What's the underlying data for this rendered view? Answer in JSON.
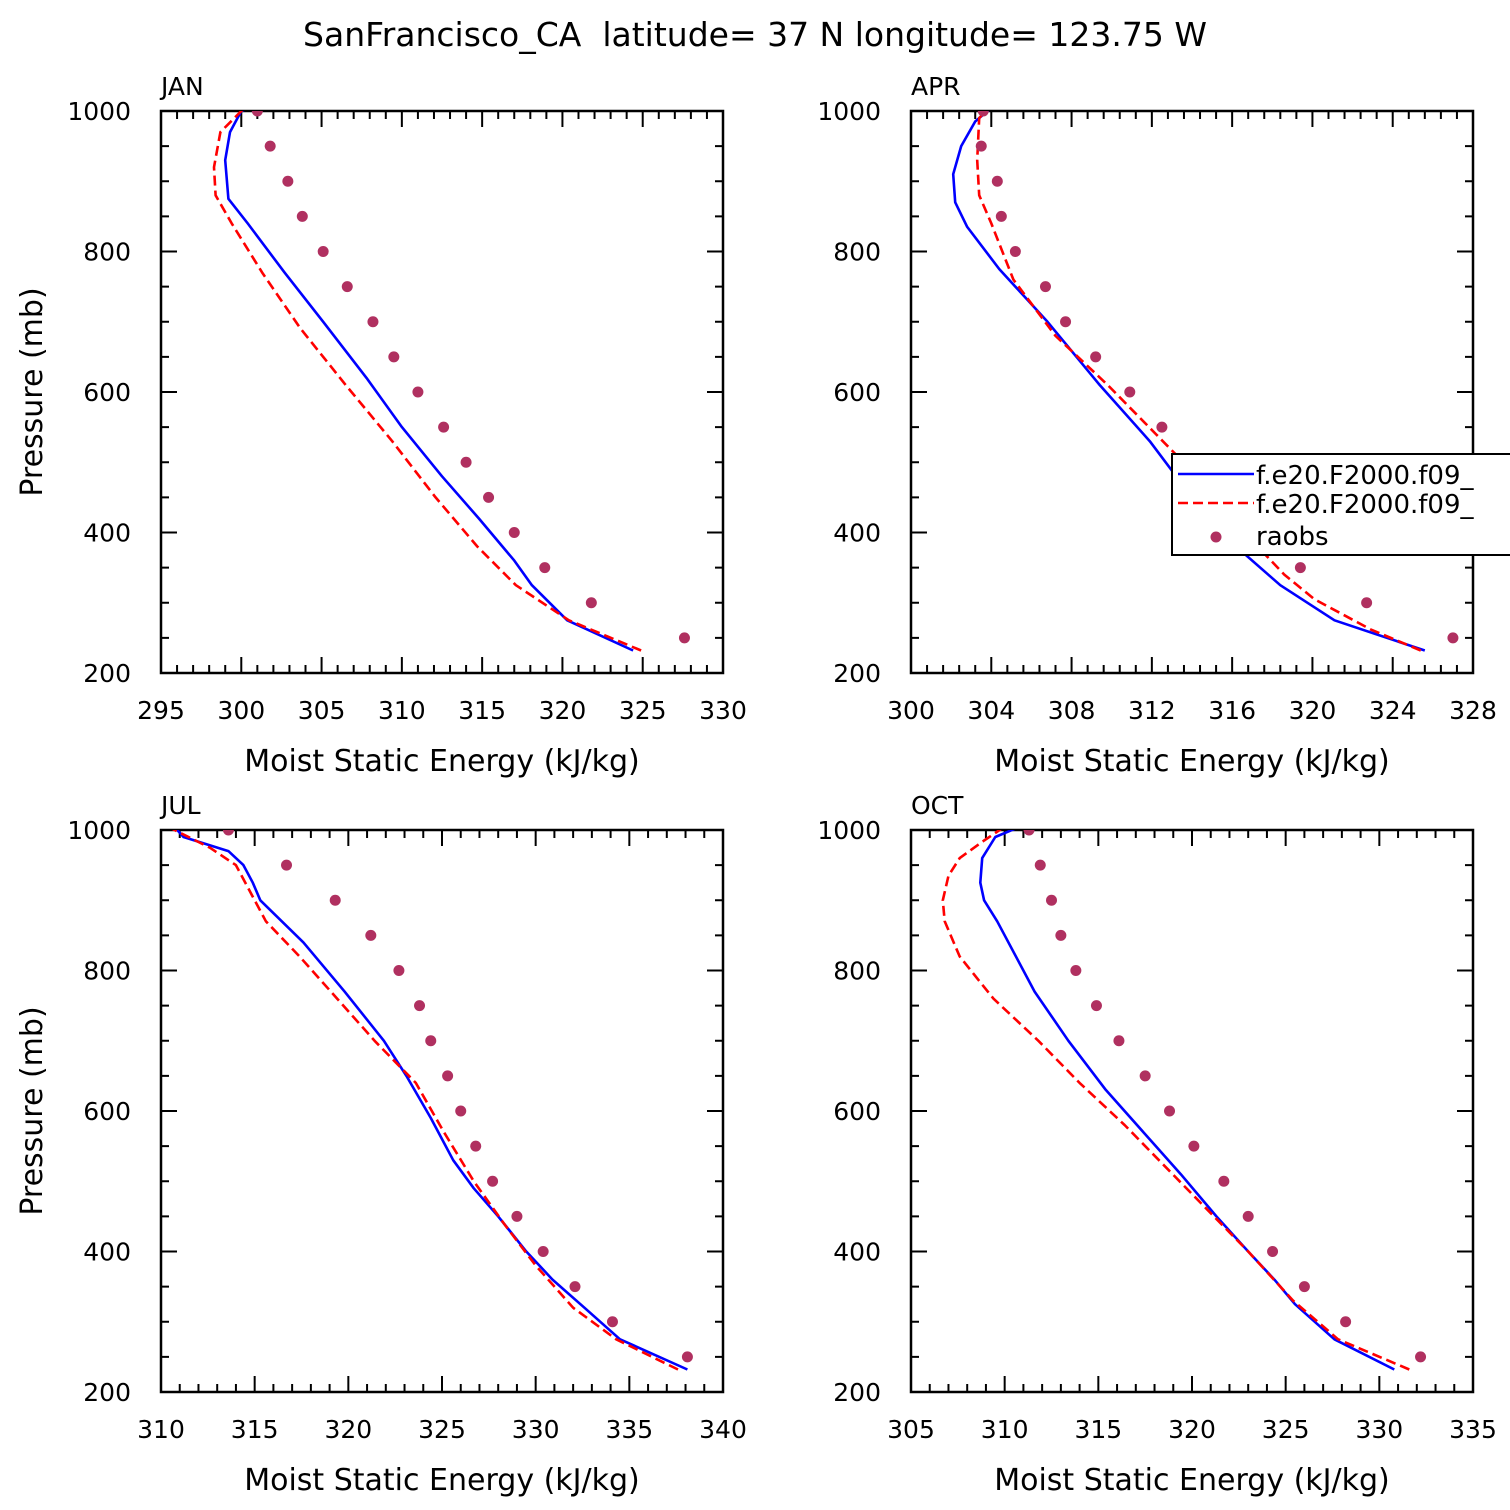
{
  "figure": {
    "title": "SanFrancisco_CA  latitude= 37 N longitude= 123.75 W"
  },
  "legend": {
    "entries": [
      {
        "label": "f.e20.F2000.f09_",
        "style": "solid",
        "color": "#0000ff"
      },
      {
        "label": "f.e20.F2000.f09_",
        "style": "dashed",
        "color": "#ff0000"
      },
      {
        "label": "raobs",
        "style": "dot",
        "color": "#b03060"
      }
    ]
  },
  "colors": {
    "model_solid": "#0000ff",
    "model_dashed": "#ff0000",
    "raobs": "#b03060"
  },
  "chart_data": [
    {
      "type": "line",
      "panel_label": "JAN",
      "xlabel": "Moist Static Energy (kJ/kg)",
      "ylabel": "Pressure (mb)",
      "xlim": [
        295,
        330
      ],
      "ylim": [
        1000,
        200
      ],
      "xticks": [
        295,
        300,
        305,
        310,
        315,
        320,
        325,
        330
      ],
      "yticks": [
        200,
        400,
        600,
        800,
        1000
      ],
      "series": [
        {
          "style": "solid",
          "color": "#0000ff",
          "x": [
            324.4,
            320.3,
            318.1,
            317.0,
            314.8,
            312.5,
            310.0,
            307.8,
            305.1,
            302.7,
            300.4,
            299.2,
            299.0,
            299.3,
            300.0,
            301.1
          ],
          "y": [
            232,
            275,
            325,
            360,
            420,
            480,
            550,
            620,
            700,
            770,
            840,
            875,
            930,
            970,
            1000,
            1010
          ]
        },
        {
          "style": "dashed",
          "color": "#ff0000",
          "x": [
            324.9,
            320.4,
            317.1,
            314.7,
            312.1,
            309.4,
            306.5,
            303.7,
            301.3,
            299.4,
            298.4,
            298.3,
            298.7,
            300.0,
            300.9
          ],
          "y": [
            232,
            275,
            325,
            380,
            450,
            530,
            610,
            690,
            770,
            840,
            880,
            920,
            970,
            1000,
            1007
          ]
        }
      ],
      "raobs": {
        "x": [
          327.6,
          321.8,
          318.9,
          317.0,
          315.4,
          314.0,
          312.6,
          311.0,
          309.5,
          308.2,
          306.6,
          305.1,
          303.8,
          302.9,
          301.8,
          301.0
        ],
        "y": [
          250,
          300,
          350,
          400,
          450,
          500,
          550,
          600,
          650,
          700,
          750,
          800,
          850,
          900,
          950,
          1000
        ]
      }
    },
    {
      "type": "line",
      "panel_label": "APR",
      "xlabel": "Moist Static Energy (kJ/kg)",
      "ylabel": "",
      "xlim": [
        300,
        328
      ],
      "ylim": [
        1000,
        200
      ],
      "xticks": [
        300,
        304,
        308,
        312,
        316,
        320,
        324,
        328
      ],
      "yticks": [
        200,
        400,
        600,
        800,
        1000
      ],
      "series": [
        {
          "style": "solid",
          "color": "#0000ff",
          "x": [
            325.6,
            321.1,
            318.4,
            316.0,
            314.0,
            311.9,
            309.4,
            306.8,
            304.4,
            302.8,
            302.2,
            302.1,
            302.5,
            303.2,
            304.1
          ],
          "y": [
            232,
            275,
            325,
            385,
            450,
            530,
            610,
            700,
            775,
            835,
            870,
            910,
            950,
            985,
            1007
          ]
        },
        {
          "style": "dashed",
          "color": "#ff0000",
          "x": [
            325.4,
            322.9,
            320.1,
            318.6,
            316.6,
            314.6,
            312.2,
            309.8,
            307.2,
            305.1,
            304.0,
            303.4,
            303.3,
            303.4,
            304.0
          ],
          "y": [
            232,
            262,
            305,
            340,
            400,
            470,
            540,
            610,
            680,
            760,
            840,
            880,
            930,
            990,
            1007
          ]
        }
      ],
      "raobs": {
        "x": [
          327.0,
          322.7,
          319.4,
          317.2,
          315.6,
          314.3,
          312.5,
          310.9,
          309.2,
          307.7,
          306.7,
          305.2,
          304.5,
          304.3,
          303.5,
          303.6
        ],
        "y": [
          250,
          300,
          350,
          400,
          450,
          500,
          550,
          600,
          650,
          700,
          750,
          800,
          850,
          900,
          950,
          1000
        ]
      }
    },
    {
      "type": "line",
      "panel_label": "JUL",
      "xlabel": "Moist Static Energy (kJ/kg)",
      "ylabel": "Pressure (mb)",
      "xlim": [
        310,
        340
      ],
      "ylim": [
        1000,
        200
      ],
      "xticks": [
        310,
        315,
        320,
        325,
        330,
        335,
        340
      ],
      "yticks": [
        200,
        400,
        600,
        800,
        1000
      ],
      "series": [
        {
          "style": "solid",
          "color": "#0000ff",
          "x": [
            338.1,
            334.5,
            332.6,
            330.9,
            329.5,
            328.0,
            326.7,
            325.6,
            324.4,
            323.1,
            321.9,
            319.8,
            317.6,
            315.3,
            314.9,
            314.4,
            313.6,
            311.2,
            310.7
          ],
          "y": [
            232,
            275,
            320,
            360,
            400,
            450,
            490,
            530,
            590,
            650,
            700,
            770,
            840,
            900,
            925,
            950,
            970,
            990,
            1005
          ]
        },
        {
          "style": "dashed",
          "color": "#ff0000",
          "x": [
            337.6,
            334.3,
            332.0,
            330.0,
            328.3,
            326.7,
            325.1,
            323.6,
            321.4,
            319.4,
            317.4,
            315.6,
            315.0,
            314.0,
            312.6,
            310.5
          ],
          "y": [
            232,
            275,
            320,
            380,
            440,
            500,
            570,
            640,
            700,
            760,
            820,
            870,
            900,
            950,
            975,
            1003
          ]
        }
      ],
      "raobs": {
        "x": [
          338.1,
          334.1,
          332.1,
          330.4,
          329.0,
          327.7,
          326.8,
          326.0,
          325.3,
          324.4,
          323.8,
          322.7,
          321.2,
          319.3,
          316.7,
          313.6
        ],
        "y": [
          250,
          300,
          350,
          400,
          450,
          500,
          550,
          600,
          650,
          700,
          750,
          800,
          850,
          900,
          950,
          1000
        ]
      }
    },
    {
      "type": "line",
      "panel_label": "OCT",
      "xlabel": "Moist Static Energy (kJ/kg)",
      "ylabel": "",
      "xlim": [
        305,
        335
      ],
      "ylim": [
        1000,
        200
      ],
      "xticks": [
        305,
        310,
        315,
        320,
        325,
        330,
        335
      ],
      "yticks": [
        200,
        400,
        600,
        800,
        1000
      ],
      "series": [
        {
          "style": "solid",
          "color": "#0000ff",
          "x": [
            330.8,
            327.6,
            325.5,
            324.4,
            323.0,
            321.3,
            319.4,
            317.4,
            315.4,
            313.4,
            311.6,
            309.6,
            308.9,
            308.7,
            308.8,
            309.5,
            311.1
          ],
          "y": [
            232,
            275,
            325,
            360,
            400,
            450,
            510,
            570,
            630,
            700,
            770,
            870,
            900,
            925,
            960,
            990,
            1008
          ]
        },
        {
          "style": "dashed",
          "color": "#ff0000",
          "x": [
            331.6,
            327.8,
            325.4,
            323.0,
            320.8,
            318.6,
            316.4,
            314.0,
            311.8,
            309.4,
            307.6,
            306.8,
            306.7,
            307.0,
            307.6,
            308.9,
            309.9
          ],
          "y": [
            232,
            275,
            330,
            400,
            460,
            520,
            580,
            640,
            700,
            760,
            820,
            870,
            900,
            935,
            960,
            985,
            1003
          ]
        }
      ],
      "raobs": {
        "x": [
          332.2,
          328.2,
          326.0,
          324.3,
          323.0,
          321.7,
          320.1,
          318.8,
          317.5,
          316.1,
          314.9,
          313.8,
          313.0,
          312.5,
          311.9,
          311.3
        ],
        "y": [
          250,
          300,
          350,
          400,
          450,
          500,
          550,
          600,
          650,
          700,
          750,
          800,
          850,
          900,
          950,
          1000
        ]
      }
    }
  ]
}
